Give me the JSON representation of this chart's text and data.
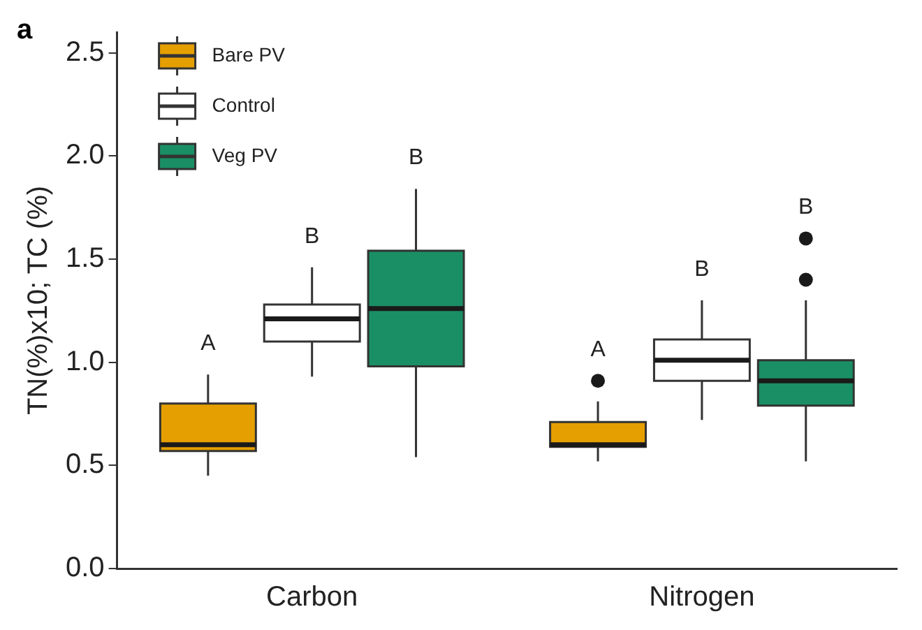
{
  "chart_data": {
    "type": "box",
    "title": "a",
    "ylabel": "TN(%)x10; TC (%)",
    "categories": [
      "Carbon",
      "Nitrogen"
    ],
    "series": [
      {
        "name": "Bare PV",
        "color": "#e69f00",
        "boxes": [
          {
            "low": 0.45,
            "q1": 0.57,
            "median": 0.6,
            "q3": 0.8,
            "high": 0.94
          },
          {
            "low": 0.52,
            "q1": 0.59,
            "median": 0.6,
            "q3": 0.71,
            "high": 0.81,
            "outliers": [
              0.91
            ]
          }
        ]
      },
      {
        "name": "Control",
        "color": "#ffffff",
        "boxes": [
          {
            "low": 0.93,
            "q1": 1.1,
            "median": 1.21,
            "q3": 1.28,
            "high": 1.46
          },
          {
            "low": 0.72,
            "q1": 0.91,
            "median": 1.01,
            "q3": 1.11,
            "high": 1.3
          }
        ]
      },
      {
        "name": "Veg PV",
        "color": "#1a8f65",
        "boxes": [
          {
            "low": 0.54,
            "q1": 0.98,
            "median": 1.26,
            "q3": 1.54,
            "high": 1.84
          },
          {
            "low": 0.52,
            "q1": 0.79,
            "median": 0.91,
            "q3": 1.01,
            "high": 1.3,
            "outliers": [
              1.4,
              1.6
            ]
          }
        ]
      }
    ],
    "ylim": [
      0,
      2.6
    ],
    "yticks": [
      {
        "value": 0,
        "label": "0.0"
      },
      {
        "value": 0.5,
        "label": "0.5"
      },
      {
        "value": 1,
        "label": "1.0"
      },
      {
        "value": 1.5,
        "label": "1.5"
      },
      {
        "value": 2,
        "label": "2.0"
      },
      {
        "value": 2.5,
        "label": "2.5"
      }
    ],
    "grid": false,
    "legend": "top left",
    "annotations": [
      "A",
      "B",
      "B",
      "A",
      "B",
      "B"
    ]
  }
}
